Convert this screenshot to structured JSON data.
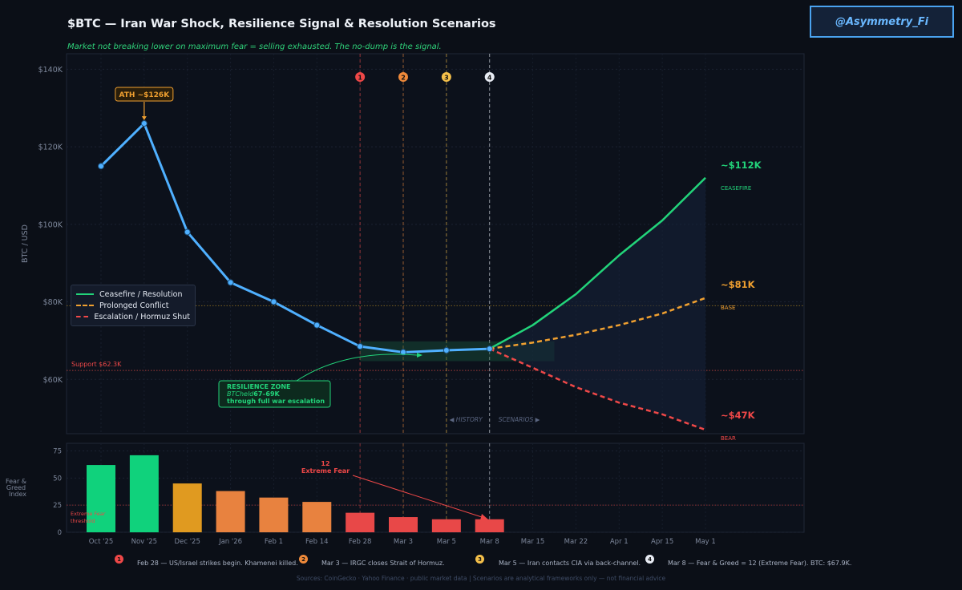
{
  "title": "$BTC  —  Iran War Shock, Resilience Signal & Resolution Scenarios",
  "subtitle": "Market not breaking lower on maximum fear = selling exhausted.  The no-dump is the signal.",
  "handle": "@Asymmetry_Fi",
  "sources": "Sources: CoinGecko · Yahoo Finance · public market data   |   Scenarios are analytical frameworks only — not financial advice",
  "colors": {
    "background": "#0b0f17",
    "btc_line": "#4fb0ff",
    "ceasefire": "#22d47a",
    "prolonged": "#f0a030",
    "escalation": "#ef4848",
    "ath": "#f0a030"
  },
  "legend": {
    "ceasefire": "Ceasefire / Resolution",
    "prolonged": "Prolonged Conflict",
    "escalation": "Escalation / Hormuz Shut"
  },
  "annotations": {
    "ath": "ATH  ~$126K",
    "support": "Support  $62.3K",
    "resilience_title": "RESILIENCE ZONE",
    "resilience_sub1": "BTCheld",
    "resilience_sub2": "67–69K",
    "resilience_sub3": "through full war escalation",
    "history": "◀  HISTORY",
    "scenarios": "SCENARIOS  ▶",
    "ceasefire_value": "~$112K",
    "ceasefire_tag": "CEASEFIRE",
    "base_value": "~$81K",
    "base_tag": "BASE",
    "bear_value": "~$47K",
    "bear_tag": "BEAR",
    "fear_value": "12",
    "fear_label": "Extreme Fear",
    "extreme_threshold_1": "Extreme Fear",
    "extreme_threshold_2": "threshold"
  },
  "events": [
    {
      "num": "1",
      "color": "#ef4848",
      "text": "Feb 28 — US/Israel strikes begin. Khamenei killed."
    },
    {
      "num": "2",
      "color": "#f08a3a",
      "text": "Mar 3  — IRGC closes Strait of Hormuz."
    },
    {
      "num": "3",
      "color": "#f5c04a",
      "text": "Mar 5  — Iran contacts CIA via back-channel."
    },
    {
      "num": "4",
      "color": "#e8ecf4",
      "text": "Mar 8  — Fear & Greed = 12 (Extreme Fear). BTC: $67.9K."
    }
  ],
  "chart_data": [
    {
      "type": "line",
      "ylabel": "BTC  /  USD",
      "ylim": [
        46000,
        144000
      ],
      "yticks": [
        "$60K",
        "$80K",
        "$100K",
        "$120K",
        "$140K"
      ],
      "ytick_values": [
        60000,
        80000,
        100000,
        120000,
        140000
      ],
      "categories": [
        "Oct '25",
        "Nov '25",
        "Dec '25",
        "Jan '26",
        "Feb 1",
        "Feb 14",
        "Feb 28",
        "Mar 3",
        "Mar 5",
        "Mar 8",
        "Mar 15",
        "Mar 22",
        "Apr 1",
        "Apr 15",
        "May 1"
      ],
      "series": [
        {
          "name": "BTC",
          "values": [
            115000,
            126000,
            98000,
            85000,
            80000,
            74000,
            68500,
            67000,
            67500,
            67900,
            null,
            null,
            null,
            null,
            null
          ]
        },
        {
          "name": "Ceasefire / Resolution",
          "values": [
            null,
            null,
            null,
            null,
            null,
            null,
            null,
            null,
            null,
            67900,
            74000,
            82000,
            92000,
            101000,
            112000
          ]
        },
        {
          "name": "Prolonged Conflict",
          "values": [
            null,
            null,
            null,
            null,
            null,
            null,
            null,
            null,
            null,
            67900,
            69500,
            71500,
            74000,
            77000,
            81000
          ]
        },
        {
          "name": "Escalation / Hormuz Shut",
          "values": [
            null,
            null,
            null,
            null,
            null,
            null,
            null,
            null,
            null,
            67900,
            63000,
            58000,
            54000,
            51000,
            47000
          ]
        }
      ],
      "support_level": 62300,
      "base_reference": 79000
    },
    {
      "type": "bar",
      "ylabel": "Fear & Greed Index",
      "ylim": [
        0,
        82
      ],
      "yticks": [
        "0",
        "25",
        "50",
        "75"
      ],
      "ytick_values": [
        0,
        25,
        50,
        75
      ],
      "categories": [
        "Oct '25",
        "Nov '25",
        "Dec '25",
        "Jan '26",
        "Feb 1",
        "Feb 14",
        "Feb 28",
        "Mar 3",
        "Mar 5",
        "Mar 8"
      ],
      "values": [
        62,
        71,
        45,
        38,
        32,
        28,
        18,
        14,
        12,
        12
      ],
      "threshold": 25
    }
  ]
}
